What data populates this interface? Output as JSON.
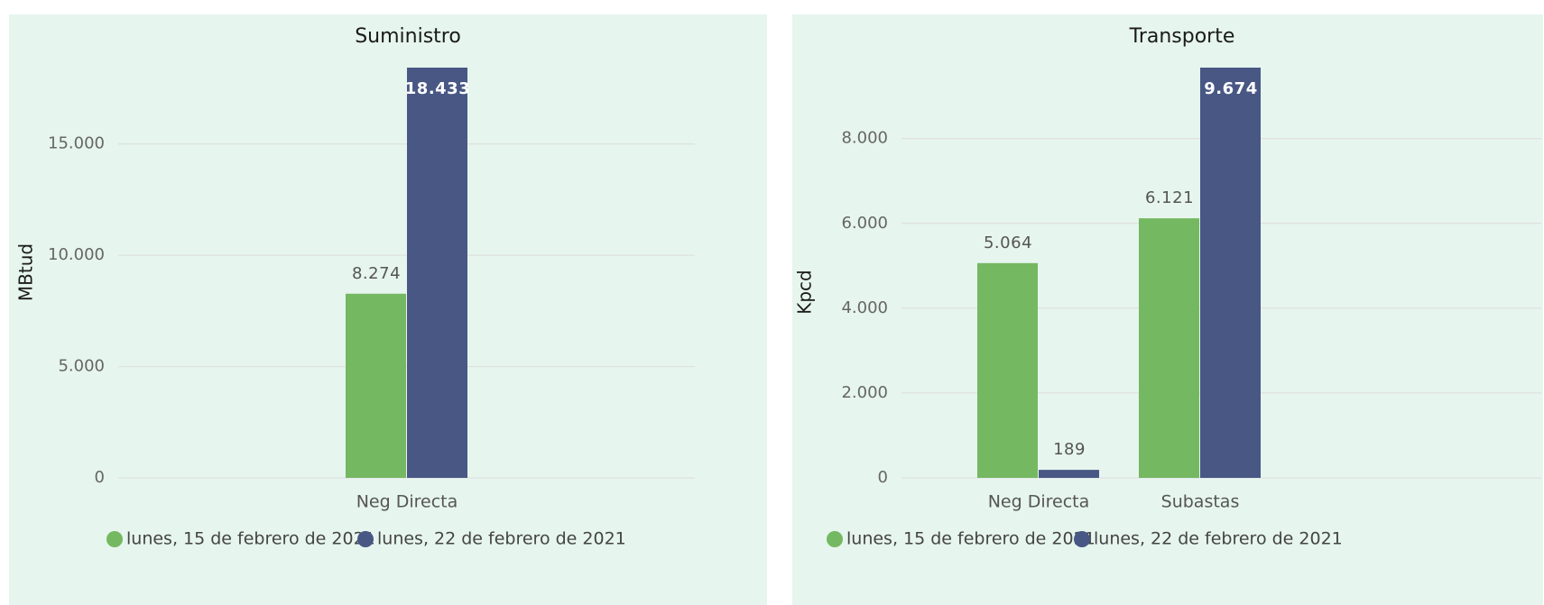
{
  "chart_data": [
    {
      "type": "bar",
      "title": "Suministro",
      "ylabel": "MBtud",
      "xlabel": "",
      "ylim": [
        0,
        18433
      ],
      "yticks": [
        0,
        5000,
        10000,
        15000
      ],
      "ytick_labels": [
        "0",
        "5.000",
        "10.000",
        "15.000"
      ],
      "categories": [
        "Neg Directa"
      ],
      "series": [
        {
          "name": "lunes, 15 de febrero de 2021",
          "color": "#75b862",
          "values": [
            8274
          ],
          "labels": [
            "8.274"
          ]
        },
        {
          "name": "lunes, 22 de febrero de 2021",
          "color": "#485784",
          "values": [
            18433
          ],
          "labels": [
            "18.433"
          ]
        }
      ],
      "grid": true,
      "legend": "bottom"
    },
    {
      "type": "bar",
      "title": "Transporte",
      "ylabel": "Kpcd",
      "xlabel": "",
      "ylim": [
        0,
        9674
      ],
      "yticks": [
        0,
        2000,
        4000,
        6000,
        8000
      ],
      "ytick_labels": [
        "0",
        "2.000",
        "4.000",
        "6.000",
        "8.000"
      ],
      "categories": [
        "Neg Directa",
        "Subastas"
      ],
      "series": [
        {
          "name": "lunes, 15 de febrero de 2021",
          "color": "#75b862",
          "values": [
            5064,
            6121
          ],
          "labels": [
            "5.064",
            "6.121"
          ]
        },
        {
          "name": "lunes, 22 de febrero de 2021",
          "color": "#485784",
          "values": [
            189,
            9674
          ],
          "labels": [
            "189",
            "9.674"
          ]
        }
      ],
      "grid": true,
      "legend": "bottom"
    }
  ]
}
